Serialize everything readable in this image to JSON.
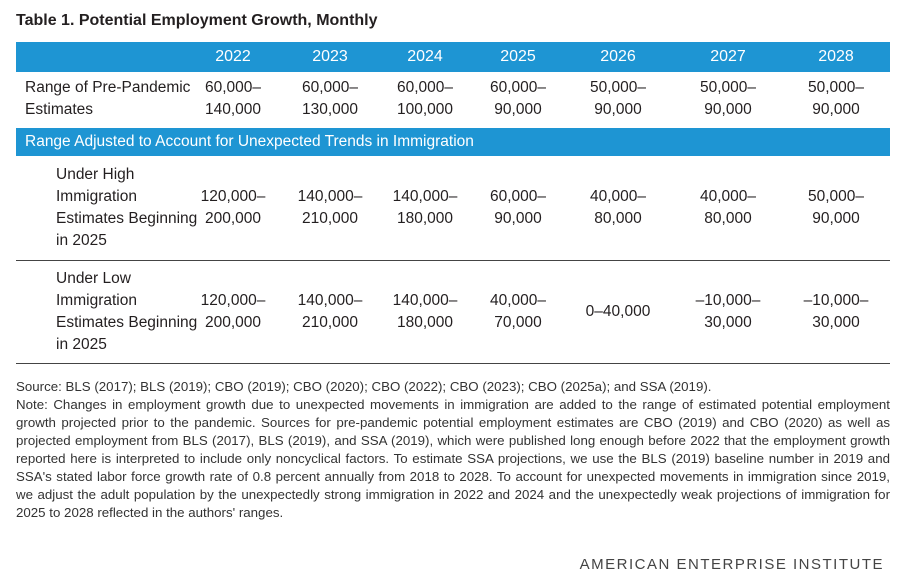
{
  "title": "Table 1. Potential Employment Growth, Monthly",
  "years": [
    "2022",
    "2023",
    "2024",
    "2025",
    "2026",
    "2027",
    "2028"
  ],
  "rows": {
    "prepandemic": {
      "label_lines": [
        "Range of Pre-Pandemic",
        "Estimates"
      ],
      "values": [
        [
          "60,000–",
          "140,000"
        ],
        [
          "60,000–",
          "130,000"
        ],
        [
          "60,000–",
          "100,000"
        ],
        [
          "60,000–",
          "90,000"
        ],
        [
          "50,000–",
          "90,000"
        ],
        [
          "50,000–",
          "90,000"
        ],
        [
          "50,000–",
          "90,000"
        ]
      ]
    },
    "section_header": "Range Adjusted to Account for Unexpected Trends in Immigration",
    "high": {
      "label_lines": [
        "Under High",
        "Immigration",
        "Estimates Beginning",
        "in 2025"
      ],
      "values": [
        [
          "120,000–",
          "200,000"
        ],
        [
          "140,000–",
          "210,000"
        ],
        [
          "140,000–",
          "180,000"
        ],
        [
          "60,000–",
          "90,000"
        ],
        [
          "40,000–",
          "80,000"
        ],
        [
          "40,000–",
          "80,000"
        ],
        [
          "50,000–",
          "90,000"
        ]
      ]
    },
    "low": {
      "label_lines": [
        "Under Low",
        "Immigration",
        "Estimates Beginning",
        "in 2025"
      ],
      "values": [
        [
          "120,000–",
          "200,000"
        ],
        [
          "140,000–",
          "210,000"
        ],
        [
          "140,000–",
          "180,000"
        ],
        [
          "40,000–",
          "70,000"
        ],
        [
          "0–40,000"
        ],
        [
          "–10,000–",
          "30,000"
        ],
        [
          "–10,000–",
          "30,000"
        ]
      ]
    }
  },
  "source": "Source: BLS (2017); BLS (2019); CBO (2019); CBO (2020); CBO (2022); CBO (2023); CBO (2025a); and SSA (2019).",
  "note": "Note: Changes in employment growth due to unexpected movements in immigration are added to the range of estimated potential employment growth projected prior to the pandemic. Sources for pre-pandemic potential employment estimates are CBO (2019) and CBO (2020) as well as projected employment from BLS (2017), BLS (2019), and SSA (2019), which were published long enough before 2022 that the employment growth reported here is interpreted to include only noncyclical factors. To estimate SSA projections, we use the BLS (2019) baseline number in 2019 and SSA's stated labor force growth rate of 0.8 percent annually from 2018 to 2028. To account for unexpected movements in immigration since 2019, we adjust the adult population by the unexpectedly strong immigration in 2022 and 2024 and the unexpectedly weak projections of immigration for 2025 to 2028 reflected in the authors' ranges.",
  "footer": "AMERICAN ENTERPRISE INSTITUTE"
}
